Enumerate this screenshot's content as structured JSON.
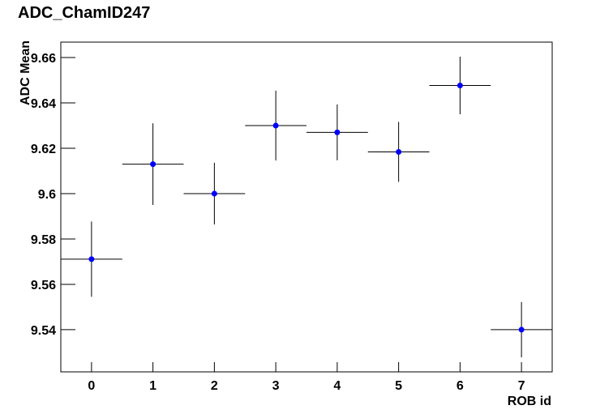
{
  "chart_data": {
    "type": "errorbar",
    "title": "ADC_ChamID247",
    "x_label": "ROB id",
    "y_label": "ADC Mean",
    "x": [
      0,
      1,
      2,
      3,
      4,
      5,
      6,
      7
    ],
    "series": [
      {
        "color": "#0000ff",
        "values": [
          9.5711,
          9.613,
          9.6,
          9.63,
          9.627,
          9.6184,
          9.6477,
          9.54
        ],
        "errors": [
          0.0166,
          0.018,
          0.0136,
          0.0154,
          0.0123,
          0.0132,
          0.0127,
          0.0122
        ],
        "x_errors": [
          0.5,
          0.5,
          0.5,
          0.5,
          0.5,
          0.5,
          0.5,
          0.5
        ]
      }
    ],
    "xlim": [
      -0.5,
      7.5
    ],
    "ylim": [
      9.5214,
      9.6668
    ],
    "xticks": [
      0,
      1,
      2,
      3,
      4,
      5,
      6,
      7
    ],
    "yticks": [
      9.54,
      9.56,
      9.58,
      9.6,
      9.62,
      9.64,
      9.66
    ]
  }
}
